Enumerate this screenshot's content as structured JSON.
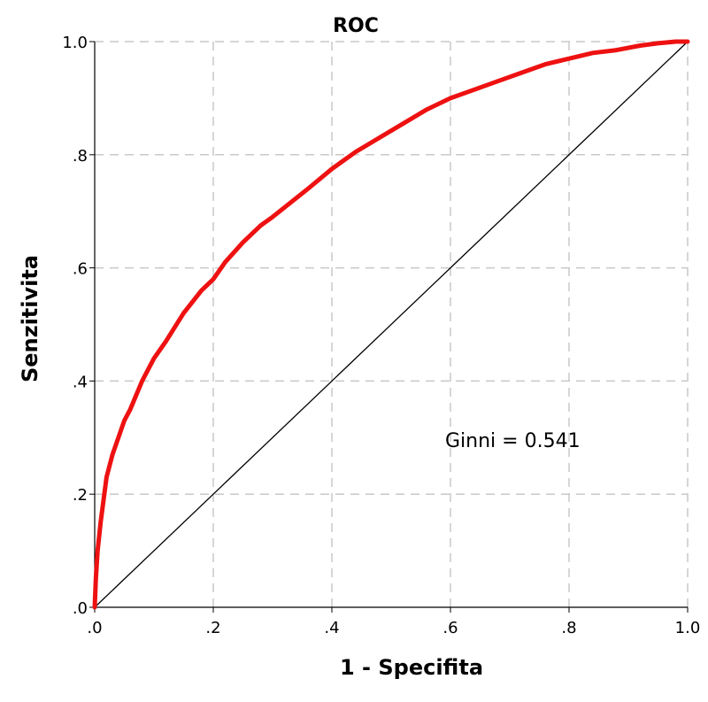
{
  "chart_data": {
    "type": "line",
    "title": "ROC",
    "xlabel": "1 - Specifita",
    "ylabel": "Senzitivita",
    "xlim": [
      0,
      1
    ],
    "ylim": [
      0,
      1
    ],
    "grid": true,
    "x_ticks": [
      ".0",
      ".2",
      ".4",
      ".6",
      ".8",
      "1.0"
    ],
    "y_ticks": [
      ".0",
      ".2",
      ".4",
      ".6",
      ".8",
      "1.0"
    ],
    "annotation": "Ginni = 0.541",
    "series": [
      {
        "color": "#ee1111",
        "x": [
          0.0,
          0.002,
          0.005,
          0.01,
          0.02,
          0.03,
          0.04,
          0.05,
          0.06,
          0.08,
          0.1,
          0.12,
          0.15,
          0.18,
          0.2,
          0.22,
          0.25,
          0.28,
          0.3,
          0.33,
          0.36,
          0.4,
          0.44,
          0.48,
          0.52,
          0.56,
          0.6,
          0.64,
          0.68,
          0.72,
          0.76,
          0.8,
          0.84,
          0.88,
          0.92,
          0.95,
          0.98,
          1.0
        ],
        "y": [
          0.0,
          0.05,
          0.1,
          0.15,
          0.23,
          0.27,
          0.3,
          0.33,
          0.35,
          0.4,
          0.44,
          0.47,
          0.52,
          0.56,
          0.58,
          0.61,
          0.645,
          0.675,
          0.69,
          0.715,
          0.74,
          0.775,
          0.805,
          0.83,
          0.855,
          0.88,
          0.9,
          0.915,
          0.93,
          0.945,
          0.96,
          0.97,
          0.98,
          0.985,
          0.993,
          0.997,
          1.0,
          1.0
        ]
      },
      {
        "color": "#000000",
        "x": [
          0,
          1
        ],
        "y": [
          0,
          1
        ]
      }
    ]
  }
}
